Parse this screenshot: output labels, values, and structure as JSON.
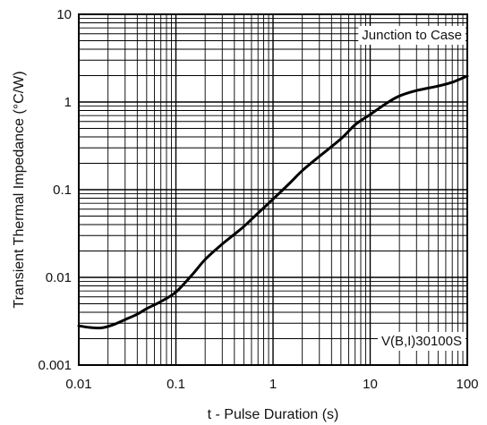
{
  "chart_data": {
    "type": "line",
    "xlabel": "t - Pulse Duration (s)",
    "ylabel": "Transient Thermal Impedance (°C/W)",
    "x_scale": "log",
    "y_scale": "log",
    "xlim": [
      0.01,
      100
    ],
    "ylim": [
      0.001,
      10
    ],
    "grid": true,
    "x_ticks": [
      {
        "value": 0.01,
        "label": "0.01"
      },
      {
        "value": 0.1,
        "label": "0.1"
      },
      {
        "value": 1,
        "label": "1"
      },
      {
        "value": 10,
        "label": "10"
      },
      {
        "value": 100,
        "label": "100"
      }
    ],
    "y_ticks": [
      {
        "value": 0.001,
        "label": "0.001"
      },
      {
        "value": 0.01,
        "label": "0.01"
      },
      {
        "value": 0.1,
        "label": "0.1"
      },
      {
        "value": 1,
        "label": "1"
      },
      {
        "value": 10,
        "label": "10"
      }
    ],
    "annotations": {
      "top_right": "Junction to Case",
      "bottom_right": "V(B,I)30100S"
    },
    "series": [
      {
        "x": [
          0.01,
          0.013,
          0.017,
          0.022,
          0.03,
          0.04,
          0.05,
          0.07,
          0.1,
          0.15,
          0.2,
          0.3,
          0.4,
          0.5,
          0.7,
          1,
          1.5,
          2,
          3,
          5,
          7,
          10,
          15,
          20,
          30,
          50,
          70,
          100
        ],
        "y": [
          0.0028,
          0.00268,
          0.00265,
          0.00285,
          0.0033,
          0.0038,
          0.0044,
          0.0053,
          0.0068,
          0.011,
          0.016,
          0.024,
          0.031,
          0.038,
          0.054,
          0.078,
          0.12,
          0.165,
          0.24,
          0.38,
          0.55,
          0.72,
          0.98,
          1.17,
          1.35,
          1.52,
          1.68,
          1.98
        ]
      }
    ]
  }
}
